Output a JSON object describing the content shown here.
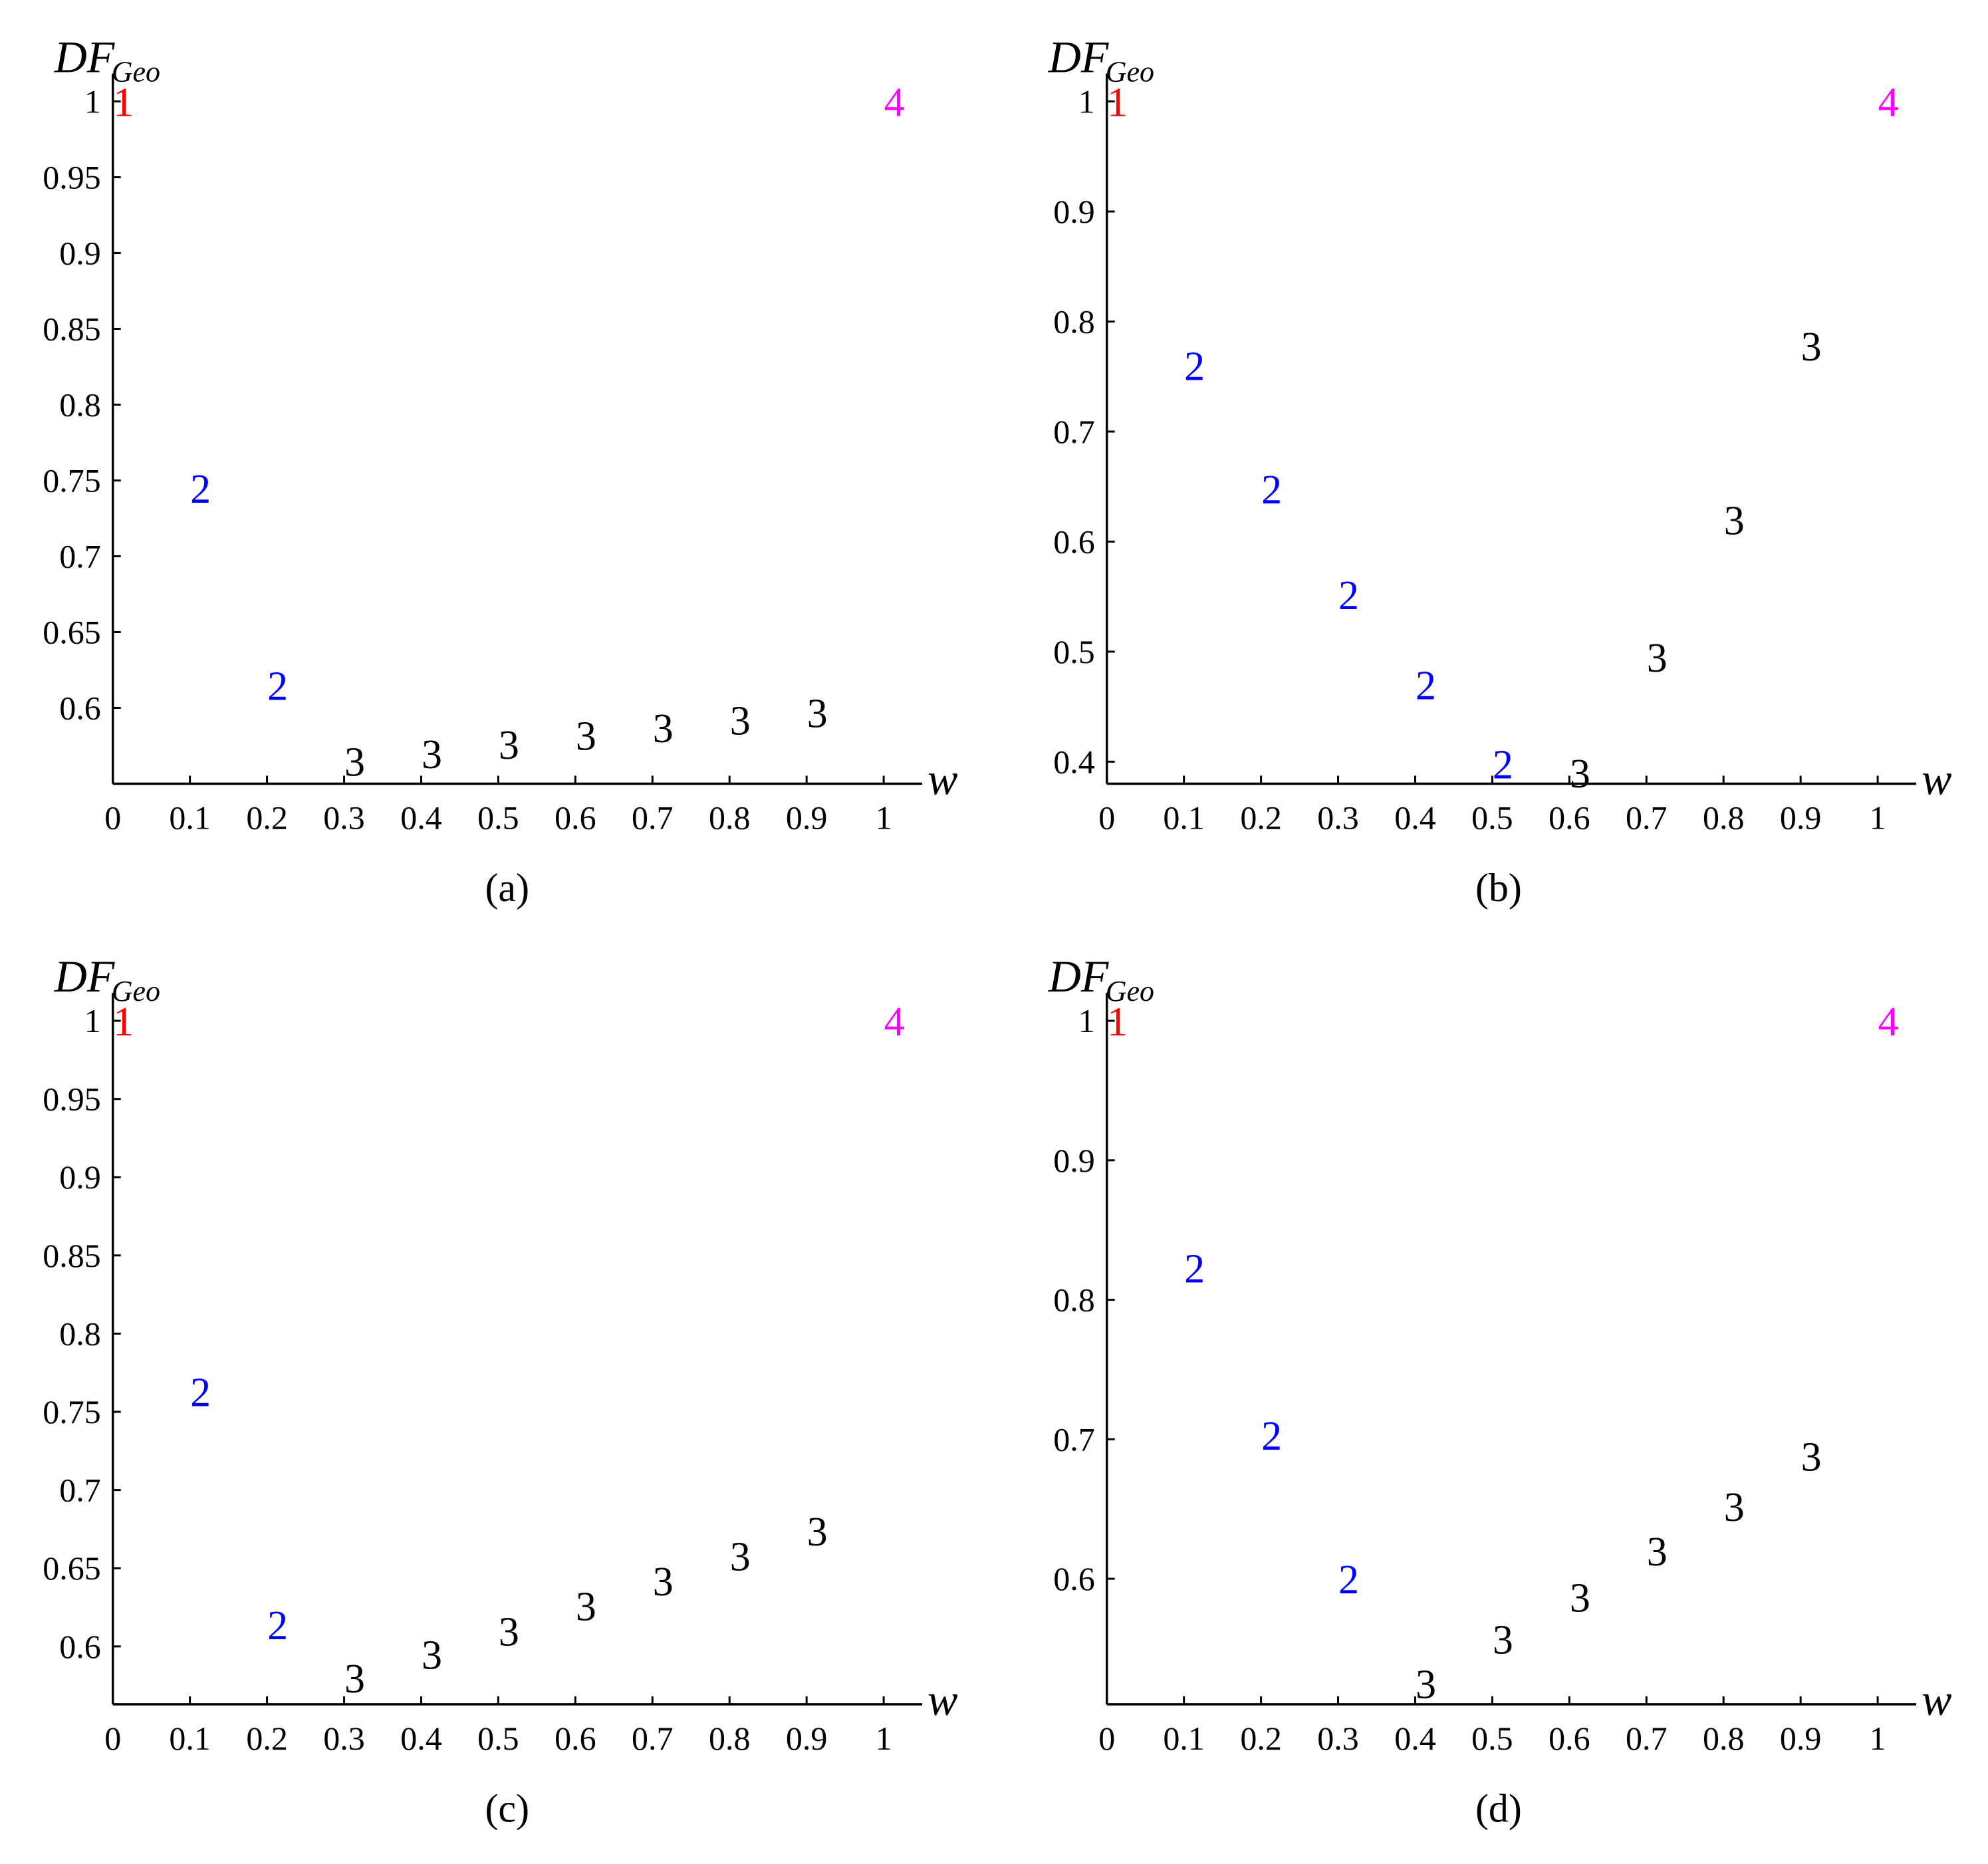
{
  "figure": {
    "ylabel_main": "DF",
    "ylabel_sub": "Geo",
    "xlabel": "w"
  },
  "colors": {
    "1": "#ff0000",
    "2": "#0000ff",
    "3": "#000000",
    "4": "#ff00ff",
    "axis": "#000000"
  },
  "chart_data": [
    {
      "type": "scatter",
      "caption": "(a)",
      "xlabel": "w",
      "ylabel": "DF_Geo",
      "xlim": [
        0,
        1.05
      ],
      "ylim": [
        0.55,
        1.02
      ],
      "xticks": [
        "0",
        "0.1",
        "0.2",
        "0.3",
        "0.4",
        "0.5",
        "0.6",
        "0.7",
        "0.8",
        "0.9",
        "1"
      ],
      "yticks": [
        "0.6",
        "0.65",
        "0.7",
        "0.75",
        "0.8",
        "0.85",
        "0.9",
        "0.95",
        "1"
      ],
      "points": [
        {
          "x": 0.0,
          "y": 1.0,
          "label": "1"
        },
        {
          "x": 0.1,
          "y": 0.745,
          "label": "2"
        },
        {
          "x": 0.2,
          "y": 0.615,
          "label": "2"
        },
        {
          "x": 0.3,
          "y": 0.565,
          "label": "3"
        },
        {
          "x": 0.4,
          "y": 0.57,
          "label": "3"
        },
        {
          "x": 0.5,
          "y": 0.576,
          "label": "3"
        },
        {
          "x": 0.6,
          "y": 0.582,
          "label": "3"
        },
        {
          "x": 0.7,
          "y": 0.587,
          "label": "3"
        },
        {
          "x": 0.8,
          "y": 0.592,
          "label": "3"
        },
        {
          "x": 0.9,
          "y": 0.597,
          "label": "3"
        },
        {
          "x": 1.0,
          "y": 1.0,
          "label": "4"
        }
      ]
    },
    {
      "type": "scatter",
      "caption": "(b)",
      "xlabel": "w",
      "ylabel": "DF_Geo",
      "xlim": [
        0,
        1.05
      ],
      "ylim": [
        0.38,
        1.02
      ],
      "xticks": [
        "0",
        "0.1",
        "0.2",
        "0.3",
        "0.4",
        "0.5",
        "0.6",
        "0.7",
        "0.8",
        "0.9",
        "1"
      ],
      "yticks": [
        "0.4",
        "0.5",
        "0.6",
        "0.7",
        "0.8",
        "0.9",
        "1"
      ],
      "points": [
        {
          "x": 0.0,
          "y": 1.0,
          "label": "1"
        },
        {
          "x": 0.1,
          "y": 0.76,
          "label": "2"
        },
        {
          "x": 0.2,
          "y": 0.648,
          "label": "2"
        },
        {
          "x": 0.3,
          "y": 0.552,
          "label": "2"
        },
        {
          "x": 0.4,
          "y": 0.47,
          "label": "2"
        },
        {
          "x": 0.5,
          "y": 0.398,
          "label": "2"
        },
        {
          "x": 0.6,
          "y": 0.39,
          "label": "3"
        },
        {
          "x": 0.7,
          "y": 0.495,
          "label": "3"
        },
        {
          "x": 0.8,
          "y": 0.62,
          "label": "3"
        },
        {
          "x": 0.9,
          "y": 0.778,
          "label": "3"
        },
        {
          "x": 1.0,
          "y": 1.0,
          "label": "4"
        }
      ]
    },
    {
      "type": "scatter",
      "caption": "(c)",
      "xlabel": "w",
      "ylabel": "DF_Geo",
      "xlim": [
        0,
        1.05
      ],
      "ylim": [
        0.563,
        1.02
      ],
      "xticks": [
        "0",
        "0.1",
        "0.2",
        "0.3",
        "0.4",
        "0.5",
        "0.6",
        "0.7",
        "0.8",
        "0.9",
        "1"
      ],
      "yticks": [
        "0.6",
        "0.65",
        "0.7",
        "0.75",
        "0.8",
        "0.85",
        "0.9",
        "0.95",
        "1"
      ],
      "points": [
        {
          "x": 0.0,
          "y": 1.0,
          "label": "1"
        },
        {
          "x": 0.1,
          "y": 0.763,
          "label": "2"
        },
        {
          "x": 0.2,
          "y": 0.614,
          "label": "2"
        },
        {
          "x": 0.3,
          "y": 0.58,
          "label": "3"
        },
        {
          "x": 0.4,
          "y": 0.595,
          "label": "3"
        },
        {
          "x": 0.5,
          "y": 0.61,
          "label": "3"
        },
        {
          "x": 0.6,
          "y": 0.626,
          "label": "3"
        },
        {
          "x": 0.7,
          "y": 0.642,
          "label": "3"
        },
        {
          "x": 0.8,
          "y": 0.658,
          "label": "3"
        },
        {
          "x": 0.9,
          "y": 0.674,
          "label": "3"
        },
        {
          "x": 1.0,
          "y": 1.0,
          "label": "4"
        }
      ]
    },
    {
      "type": "scatter",
      "caption": "(d)",
      "xlabel": "w",
      "ylabel": "DF_Geo",
      "xlim": [
        0,
        1.05
      ],
      "ylim": [
        0.51,
        1.02
      ],
      "xticks": [
        "0",
        "0.1",
        "0.2",
        "0.3",
        "0.4",
        "0.5",
        "0.6",
        "0.7",
        "0.8",
        "0.9",
        "1"
      ],
      "yticks": [
        "0.6",
        "0.7",
        "0.8",
        "0.9",
        "1"
      ],
      "points": [
        {
          "x": 0.0,
          "y": 1.0,
          "label": "1"
        },
        {
          "x": 0.1,
          "y": 0.823,
          "label": "2"
        },
        {
          "x": 0.2,
          "y": 0.703,
          "label": "2"
        },
        {
          "x": 0.3,
          "y": 0.6,
          "label": "2"
        },
        {
          "x": 0.4,
          "y": 0.525,
          "label": "3"
        },
        {
          "x": 0.5,
          "y": 0.557,
          "label": "3"
        },
        {
          "x": 0.6,
          "y": 0.587,
          "label": "3"
        },
        {
          "x": 0.7,
          "y": 0.62,
          "label": "3"
        },
        {
          "x": 0.8,
          "y": 0.652,
          "label": "3"
        },
        {
          "x": 0.9,
          "y": 0.688,
          "label": "3"
        },
        {
          "x": 1.0,
          "y": 1.0,
          "label": "4"
        }
      ]
    }
  ]
}
